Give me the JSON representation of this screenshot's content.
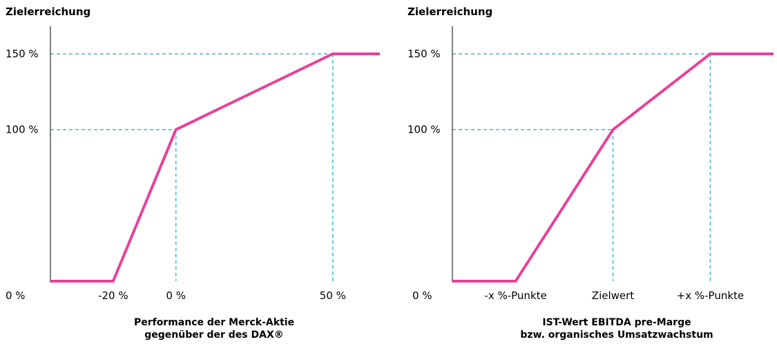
{
  "chart_data": [
    {
      "type": "line",
      "ylabel": "Zielerreichung",
      "xlabel_lines": [
        "Performance der Merck-Aktie",
        "gegenüber der des DAX®"
      ],
      "y_ticks": [
        {
          "value": 0,
          "label": "0 %"
        },
        {
          "value": 100,
          "label": "100 %"
        },
        {
          "value": 150,
          "label": "150 %"
        }
      ],
      "x_ticks": [
        {
          "value": -20,
          "label": "-20 %"
        },
        {
          "value": 0,
          "label": "0 %"
        },
        {
          "value": 50,
          "label": "50 %"
        }
      ],
      "xlim": [
        -40,
        65
      ],
      "ylim": [
        0,
        150
      ],
      "series": [
        {
          "x": [
            -40,
            -20,
            0,
            50,
            65
          ],
          "y": [
            0,
            0,
            100,
            150,
            150
          ]
        }
      ],
      "reference_points": [
        {
          "x": 0,
          "y": 100
        },
        {
          "x": 50,
          "y": 150
        }
      ],
      "line_color": "#e8409a",
      "guide_color": "#3fb8c9"
    },
    {
      "type": "line",
      "ylabel": "Zielerreichung",
      "xlabel_lines": [
        "IST-Wert EBITDA pre-Marge",
        "bzw. organisches Umsatzwachstum"
      ],
      "y_ticks": [
        {
          "value": 0,
          "label": "0 %"
        },
        {
          "value": 100,
          "label": "100 %"
        },
        {
          "value": 150,
          "label": "150 %"
        }
      ],
      "x_ticks": [
        {
          "value": -1,
          "label": "-x %-Punkte"
        },
        {
          "value": 0,
          "label": "Zielwert"
        },
        {
          "value": 1,
          "label": "+x %-Punkte"
        }
      ],
      "xlim": [
        -1.65,
        1.65
      ],
      "ylim": [
        0,
        150
      ],
      "series": [
        {
          "x": [
            -1.65,
            -1,
            0,
            1,
            1.65
          ],
          "y": [
            0,
            0,
            100,
            150,
            150
          ]
        }
      ],
      "reference_points": [
        {
          "x": 0,
          "y": 100
        },
        {
          "x": 1,
          "y": 150
        }
      ],
      "line_color": "#e8409a",
      "guide_color": "#3fb8c9"
    }
  ]
}
